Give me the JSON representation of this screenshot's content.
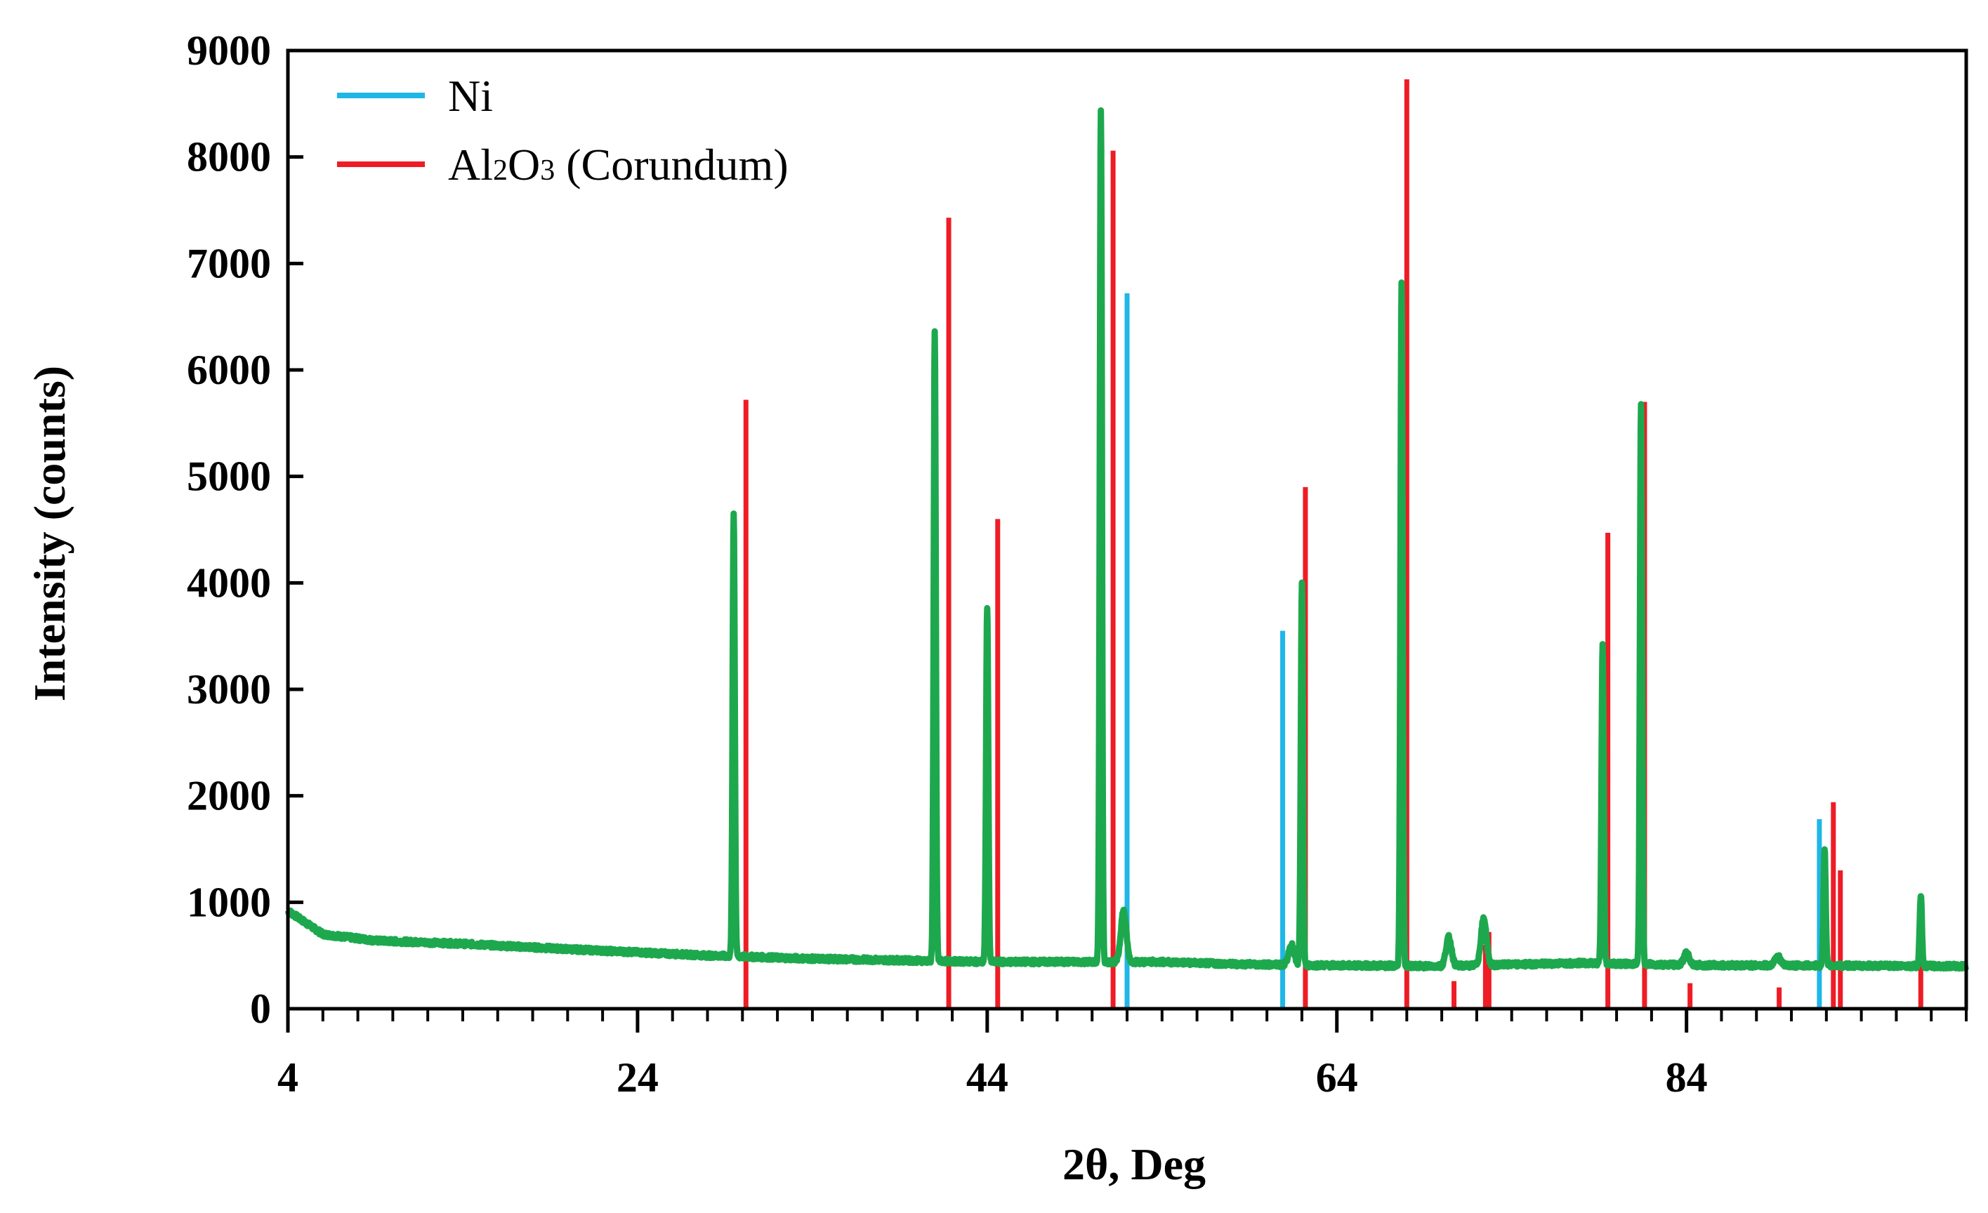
{
  "chart_data": {
    "type": "line",
    "title": "",
    "xlabel": "2θ, Deg",
    "ylabel": "Intensity (counts)",
    "xlim": [
      4,
      100
    ],
    "ylim": [
      0,
      9000
    ],
    "x_ticks": [
      4,
      24,
      44,
      64,
      84
    ],
    "x_tick_labels": [
      "4",
      "24",
      "44",
      "64",
      "84"
    ],
    "y_ticks": [
      0,
      1000,
      2000,
      3000,
      4000,
      5000,
      6000,
      7000,
      8000,
      9000
    ],
    "y_tick_labels": [
      "0",
      "1000",
      "2000",
      "3000",
      "4000",
      "5000",
      "6000",
      "7000",
      "8000",
      "9000"
    ],
    "legend_position": "top-left",
    "legend": [
      {
        "name": "Ni",
        "color": "#1fb6e8"
      },
      {
        "name": "Al",
        "sub": "2",
        "mid": "O",
        "sub2": "3",
        "suffix": " (Corundum)",
        "color": "#ee1c25"
      }
    ],
    "measured_pattern": {
      "color": "#1ea84e",
      "baseline": [
        [
          4,
          920
        ],
        [
          6,
          700
        ],
        [
          9,
          640
        ],
        [
          14,
          610
        ],
        [
          20,
          560
        ],
        [
          28,
          500
        ],
        [
          34,
          470
        ],
        [
          44,
          440
        ],
        [
          50,
          440
        ],
        [
          54,
          440
        ],
        [
          58,
          420
        ],
        [
          62,
          410
        ],
        [
          70,
          400
        ],
        [
          78,
          430
        ],
        [
          84,
          410
        ],
        [
          100,
          400
        ]
      ],
      "peaks": [
        {
          "x": 29.5,
          "y": 4650
        },
        {
          "x": 41.0,
          "y": 6350
        },
        {
          "x": 44.0,
          "y": 3780
        },
        {
          "x": 50.5,
          "y": 8450
        },
        {
          "x": 51.8,
          "y": 920
        },
        {
          "x": 61.4,
          "y": 600
        },
        {
          "x": 62.0,
          "y": 4000
        },
        {
          "x": 67.7,
          "y": 6800
        },
        {
          "x": 70.4,
          "y": 670
        },
        {
          "x": 72.4,
          "y": 850
        },
        {
          "x": 79.2,
          "y": 3420
        },
        {
          "x": 81.4,
          "y": 5680
        },
        {
          "x": 84.0,
          "y": 520
        },
        {
          "x": 89.2,
          "y": 500
        },
        {
          "x": 91.9,
          "y": 1500
        },
        {
          "x": 97.4,
          "y": 1070
        }
      ]
    },
    "reference_Ni": {
      "name": "Ni",
      "color": "#1fb6e8",
      "x": [
        52.0,
        60.9,
        91.6
      ],
      "y": [
        6720,
        3550,
        1780
      ]
    },
    "reference_Al2O3": {
      "name": "Al2O3 (Corundum)",
      "color": "#ee1c25",
      "x": [
        30.2,
        41.8,
        44.6,
        51.2,
        62.2,
        68.0,
        70.7,
        72.5,
        72.7,
        79.5,
        81.6,
        84.2,
        89.3,
        92.4,
        92.8,
        97.4
      ],
      "y": [
        5720,
        7430,
        4600,
        8060,
        4900,
        8730,
        260,
        600,
        720,
        4470,
        5700,
        240,
        200,
        1940,
        1300,
        830
      ]
    }
  }
}
